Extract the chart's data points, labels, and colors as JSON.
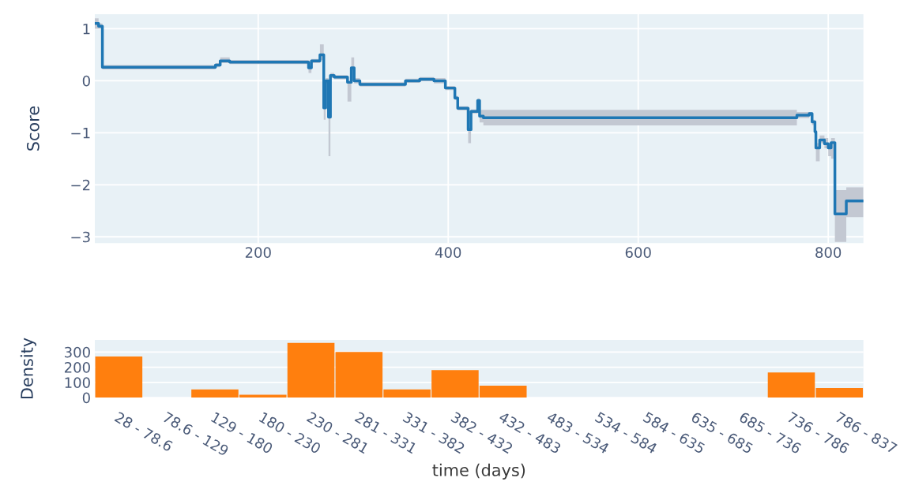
{
  "chart_data": [
    {
      "type": "step",
      "ylabel": "Score",
      "xlim": [
        28,
        837
      ],
      "ylim": [
        -3.12,
        1.28
      ],
      "xticks": [
        200,
        400,
        600,
        800
      ],
      "yticks": [
        {
          "value": -3,
          "label": "−3"
        },
        {
          "value": -2,
          "label": "−2"
        },
        {
          "value": -1,
          "label": "−1"
        },
        0,
        1
      ],
      "grid": true,
      "series": [
        {
          "color": "#1f77b4",
          "x": [
            28,
            32,
            36,
            155,
            160,
            170,
            253,
            256,
            265,
            269,
            271,
            274,
            276,
            280,
            294,
            298,
            301,
            307,
            355,
            370,
            385,
            397,
            407,
            410,
            421,
            424,
            431,
            433,
            437,
            767,
            780,
            783,
            786,
            787,
            791,
            796,
            800,
            803,
            807,
            819,
            837
          ],
          "values": [
            1.1,
            1.05,
            0.26,
            0.3,
            0.38,
            0.36,
            0.25,
            0.38,
            0.5,
            -0.52,
            0.0,
            -0.7,
            0.1,
            0.07,
            -0.03,
            0.25,
            0.0,
            -0.07,
            0.0,
            0.03,
            0.0,
            -0.14,
            -0.33,
            -0.53,
            -0.94,
            -0.59,
            -0.38,
            -0.68,
            -0.71,
            -0.66,
            -0.63,
            -0.79,
            -0.98,
            -1.29,
            -1.14,
            -1.21,
            -1.29,
            -1.19,
            -2.56,
            -2.31,
            -2.31
          ],
          "lower": [
            1.0,
            1.0,
            0.22,
            0.26,
            0.34,
            0.32,
            0.15,
            0.34,
            0.4,
            -0.75,
            -0.05,
            -1.45,
            0.05,
            0.03,
            -0.4,
            0.2,
            -0.05,
            -0.11,
            -0.04,
            -0.01,
            -0.05,
            -0.18,
            -0.37,
            -0.57,
            -1.2,
            -0.63,
            -0.42,
            -0.8,
            -0.86,
            -0.72,
            -0.67,
            -0.85,
            -1.1,
            -1.55,
            -1.2,
            -1.3,
            -1.45,
            -1.5,
            -3.1,
            -2.62,
            -2.62
          ],
          "upper": [
            1.2,
            1.1,
            0.3,
            0.34,
            0.45,
            0.4,
            0.3,
            0.42,
            0.7,
            -0.4,
            0.05,
            -0.6,
            0.15,
            0.11,
            0.0,
            0.45,
            0.05,
            -0.03,
            0.04,
            0.07,
            0.05,
            -0.1,
            -0.29,
            -0.49,
            -0.9,
            -0.55,
            -0.34,
            -0.56,
            -0.56,
            -0.6,
            -0.6,
            -0.75,
            -0.9,
            -1.2,
            -1.05,
            -1.1,
            -1.2,
            -1.1,
            -2.1,
            -2.05,
            -2.05
          ]
        }
      ]
    },
    {
      "type": "bar",
      "xlabel": "time (days)",
      "ylabel": "Density",
      "ylim": [
        0,
        380
      ],
      "yticks": [
        0,
        100,
        200,
        300
      ],
      "grid": "y",
      "categories": [
        "28 - 78.6",
        "78.6 - 129",
        "129 - 180",
        "180 - 230",
        "230 - 281",
        "281 - 331",
        "331 - 382",
        "382 - 432",
        "432 - 483",
        "483 - 534",
        "534 - 584",
        "584 - 635",
        "635 - 685",
        "685 - 736",
        "736 - 786",
        "786 - 837"
      ],
      "series": [
        {
          "color": "#ff7f0e",
          "values": [
            271,
            0,
            53,
            18,
            360,
            300,
            53,
            181,
            78,
            0,
            0,
            0,
            0,
            0,
            165,
            62
          ]
        }
      ]
    }
  ]
}
